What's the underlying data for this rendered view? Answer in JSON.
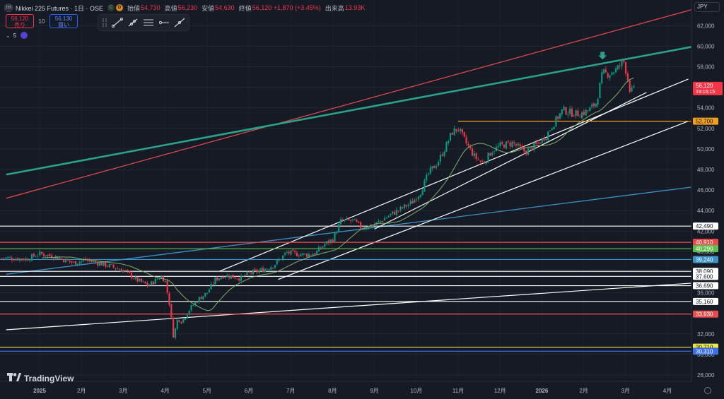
{
  "header": {
    "symbol_badge": "225",
    "title": "Nikkei 225 Futures · 1日 · OSE",
    "badge_c": "C",
    "badge_d": "D",
    "ohlc": [
      {
        "label": "始値",
        "value": "54,730"
      },
      {
        "label": "高値",
        "value": "56,230"
      },
      {
        "label": "安値",
        "value": "54,630"
      },
      {
        "label": "終値",
        "value": "56,120 +1,870 (+3.45%)"
      },
      {
        "label": "出来高",
        "value": "13.93K"
      }
    ]
  },
  "trade": {
    "sell_price": "56,120",
    "sell_label": "売り",
    "qty": "10",
    "buy_price": "56,130",
    "buy_label": "買い"
  },
  "indicator": {
    "chevron": "⌄",
    "label": "5"
  },
  "currency": "JPY",
  "logo": "TradingView",
  "colors": {
    "background": "#161a25",
    "up": "#089981",
    "down": "#f23645",
    "ma": "#7fb069",
    "channel_red": "#e84b4b",
    "channel_teal": "#2aa18a",
    "support_blue": "#3b93c7",
    "orange": "#f0a020",
    "white": "#ffffff"
  },
  "chart_data": {
    "type": "candlestick",
    "title": "Nikkei 225 Futures · 1日 · OSE",
    "yaxis": {
      "ticks": [
        28000,
        30000,
        32000,
        34000,
        36000,
        38000,
        40000,
        42000,
        44000,
        46000,
        48000,
        50000,
        52000,
        54000,
        56000,
        58000,
        60000,
        62000
      ],
      "labels": [
        "28,000",
        "30,000",
        "32,000",
        "34,000",
        "36,000",
        "38,000",
        "40,000",
        "42,000",
        "44,000",
        "46,000",
        "48,000",
        "50,000",
        "52,000",
        "54,000",
        "56,000",
        "58,000",
        "60,000",
        "62,000"
      ]
    },
    "xaxis": {
      "labels": [
        {
          "label": "2025",
          "m": 0
        },
        {
          "label": "2月",
          "m": 1
        },
        {
          "label": "3月",
          "m": 2
        },
        {
          "label": "4月",
          "m": 3
        },
        {
          "label": "5月",
          "m": 4
        },
        {
          "label": "6月",
          "m": 5
        },
        {
          "label": "7月",
          "m": 6
        },
        {
          "label": "8月",
          "m": 7
        },
        {
          "label": "9月",
          "m": 8
        },
        {
          "label": "10月",
          "m": 9
        },
        {
          "label": "11月",
          "m": 10
        },
        {
          "label": "12月",
          "m": 11
        },
        {
          "label": "2026",
          "m": 12
        },
        {
          "label": "2月",
          "m": 13
        },
        {
          "label": "3月",
          "m": 14
        },
        {
          "label": "4月",
          "m": 15
        }
      ]
    },
    "price_path": [
      [
        -0.9,
        39400
      ],
      [
        -0.3,
        39300
      ],
      [
        0.0,
        39800
      ],
      [
        0.4,
        39500
      ],
      [
        0.8,
        38900
      ],
      [
        1.1,
        39200
      ],
      [
        1.5,
        38800
      ],
      [
        2.0,
        38200
      ],
      [
        2.3,
        37300
      ],
      [
        2.6,
        36700
      ],
      [
        2.9,
        37600
      ],
      [
        3.0,
        37200
      ],
      [
        3.1,
        35000
      ],
      [
        3.2,
        31700
      ],
      [
        3.3,
        33500
      ],
      [
        3.4,
        33200
      ],
      [
        3.6,
        34500
      ],
      [
        3.8,
        35400
      ],
      [
        4.0,
        36000
      ],
      [
        4.2,
        37300
      ],
      [
        4.4,
        37700
      ],
      [
        4.6,
        37600
      ],
      [
        4.8,
        37400
      ],
      [
        5.0,
        37900
      ],
      [
        5.3,
        38200
      ],
      [
        5.6,
        38700
      ],
      [
        5.9,
        39900
      ],
      [
        6.1,
        39800
      ],
      [
        6.4,
        39700
      ],
      [
        6.6,
        39900
      ],
      [
        6.8,
        40700
      ],
      [
        7.0,
        41200
      ],
      [
        7.2,
        43000
      ],
      [
        7.5,
        43000
      ],
      [
        7.7,
        42300
      ],
      [
        8.0,
        42600
      ],
      [
        8.3,
        43400
      ],
      [
        8.6,
        44100
      ],
      [
        8.9,
        44800
      ],
      [
        9.1,
        45800
      ],
      [
        9.3,
        47700
      ],
      [
        9.5,
        48600
      ],
      [
        9.7,
        50200
      ],
      [
        9.85,
        51600
      ],
      [
        10.0,
        52000
      ],
      [
        10.2,
        50500
      ],
      [
        10.4,
        49200
      ],
      [
        10.6,
        48600
      ],
      [
        10.8,
        49800
      ],
      [
        11.0,
        50300
      ],
      [
        11.3,
        50600
      ],
      [
        11.6,
        49700
      ],
      [
        11.9,
        50500
      ],
      [
        12.1,
        51300
      ],
      [
        12.3,
        52600
      ],
      [
        12.5,
        53800
      ],
      [
        12.7,
        53500
      ],
      [
        12.9,
        53400
      ],
      [
        13.1,
        53700
      ],
      [
        13.3,
        54500
      ],
      [
        13.45,
        57400
      ],
      [
        13.6,
        57300
      ],
      [
        13.8,
        57800
      ],
      [
        13.95,
        58600
      ],
      [
        14.05,
        56900
      ],
      [
        14.12,
        55400
      ],
      [
        14.2,
        56120
      ]
    ],
    "last_price": {
      "value": 56120,
      "label": "56,120",
      "time": "19:16:15"
    },
    "horizontal_levels": [
      {
        "value": 52700,
        "label": "52,700",
        "color": "#f0a020",
        "start_m": 10.0
      },
      {
        "value": 42490,
        "label": "42,490",
        "color": "#ffffff"
      },
      {
        "value": 40910,
        "label": "40,910",
        "color": "#e84b4b"
      },
      {
        "value": 40290,
        "label": "40,290",
        "color": "#5fbf4f"
      },
      {
        "value": 39240,
        "label": "39,240",
        "color": "#3b93c7"
      },
      {
        "value": 38090,
        "label": "38,090",
        "color": "#ffffff"
      },
      {
        "value": 37600,
        "label": "37,600",
        "color": "#ffffff"
      },
      {
        "value": 36690,
        "label": "36,690",
        "color": "#ffffff"
      },
      {
        "value": 35160,
        "label": "35,160",
        "color": "#ffffff"
      },
      {
        "value": 33930,
        "label": "33,930",
        "color": "#e84b4b"
      },
      {
        "value": 30710,
        "label": "30,710",
        "color": "#e8e84b"
      },
      {
        "value": 30310,
        "label": "30,310",
        "color": "#3b6fe8"
      }
    ],
    "trend_lines": [
      {
        "name": "red-channel-line",
        "color": "#e84b4b",
        "width": 1.2,
        "p1": [
          -0.8,
          45200
        ],
        "p2": [
          15.8,
          63800
        ]
      },
      {
        "name": "teal-channel-line",
        "color": "#2aa18a",
        "width": 2.6,
        "p1": [
          -0.8,
          47500
        ],
        "p2": [
          15.8,
          60100
        ]
      },
      {
        "name": "blue-support-line",
        "color": "#3b93c7",
        "width": 1.3,
        "p1": [
          -0.8,
          37800
        ],
        "p2": [
          15.8,
          46400
        ]
      },
      {
        "name": "white-long-support-line",
        "color": "#ffffff",
        "width": 1.2,
        "p1": [
          -0.8,
          32400
        ],
        "p2": [
          15.8,
          37000
        ]
      },
      {
        "name": "white-channel-upper",
        "color": "#ffffff",
        "width": 1.2,
        "p1": [
          4.3,
          38100
        ],
        "p2": [
          15.5,
          56800
        ]
      },
      {
        "name": "white-channel-lower",
        "color": "#ffffff",
        "width": 1.2,
        "p1": [
          5.7,
          37300
        ],
        "p2": [
          15.5,
          52700
        ]
      },
      {
        "name": "white-wedge-line",
        "color": "#ffffff",
        "width": 1.2,
        "p1": [
          8.0,
          42200
        ],
        "p2": [
          14.5,
          55500
        ]
      }
    ],
    "marker": {
      "type": "arrow-down",
      "m": 13.45,
      "value": 58900,
      "color": "#2aa18a"
    },
    "legend": "none",
    "grid": true
  }
}
